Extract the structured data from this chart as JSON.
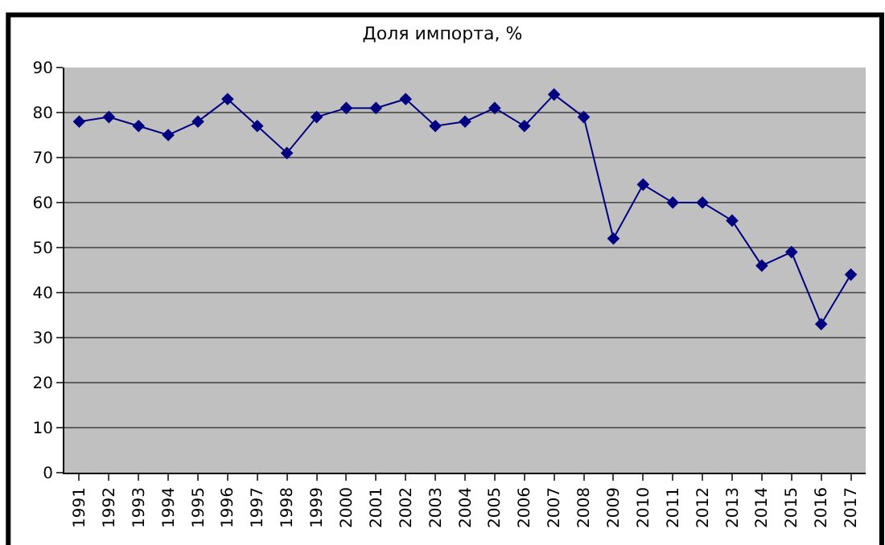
{
  "chart_data": {
    "type": "line",
    "title": "Доля импорта, %",
    "categories": [
      "1991",
      "1992",
      "1993",
      "1994",
      "1995",
      "1996",
      "1997",
      "1998",
      "1999",
      "2000",
      "2001",
      "2002",
      "2003",
      "2004",
      "2005",
      "2006",
      "2007",
      "2008",
      "2009",
      "2010",
      "2011",
      "2012",
      "2013",
      "2014",
      "2015",
      "2016",
      "2017"
    ],
    "series": [
      {
        "color": "#000080",
        "values": [
          78,
          79,
          77,
          75,
          78,
          83,
          77,
          71,
          79,
          81,
          81,
          83,
          77,
          78,
          81,
          77,
          84,
          79,
          52,
          64,
          60,
          60,
          56,
          46,
          49,
          33,
          44
        ]
      }
    ],
    "ylim": [
      0,
      90
    ],
    "yticks": [
      0,
      10,
      20,
      30,
      40,
      50,
      60,
      70,
      80,
      90
    ],
    "grid": "y",
    "marker": "diamond",
    "line_style": "solid"
  }
}
